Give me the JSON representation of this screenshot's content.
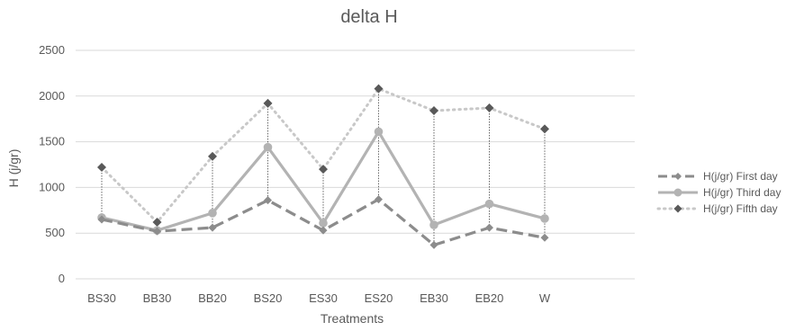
{
  "chart_data": {
    "type": "line",
    "title": "delta H",
    "xlabel": "Treatments",
    "ylabel": "H (j/gr)",
    "ylim": [
      0,
      2500
    ],
    "yticks": [
      "0",
      "500",
      "1000",
      "1500",
      "2000",
      "2500"
    ],
    "categories": [
      "BS30",
      "BB30",
      "BB20",
      "BS20",
      "ES30",
      "ES20",
      "EB30",
      "EB20",
      "W"
    ],
    "grid": true,
    "legend_position": "right",
    "drop_lines": true,
    "series": [
      {
        "name": "H(j/gr) First day",
        "values": [
          650,
          520,
          560,
          860,
          530,
          870,
          370,
          560,
          450
        ],
        "color": "#8c8c8c",
        "style": "dashed"
      },
      {
        "name": "H(j/gr) Third day",
        "values": [
          670,
          530,
          720,
          1440,
          610,
          1610,
          590,
          820,
          660
        ],
        "color": "#b3b3b3",
        "style": "solid"
      },
      {
        "name": "H(j/gr) Fifth day",
        "values": [
          1220,
          620,
          1340,
          1920,
          1200,
          2080,
          1840,
          1870,
          1640
        ],
        "color": "#595959",
        "line_color": "#c8c8c8",
        "style": "dotted"
      }
    ]
  }
}
